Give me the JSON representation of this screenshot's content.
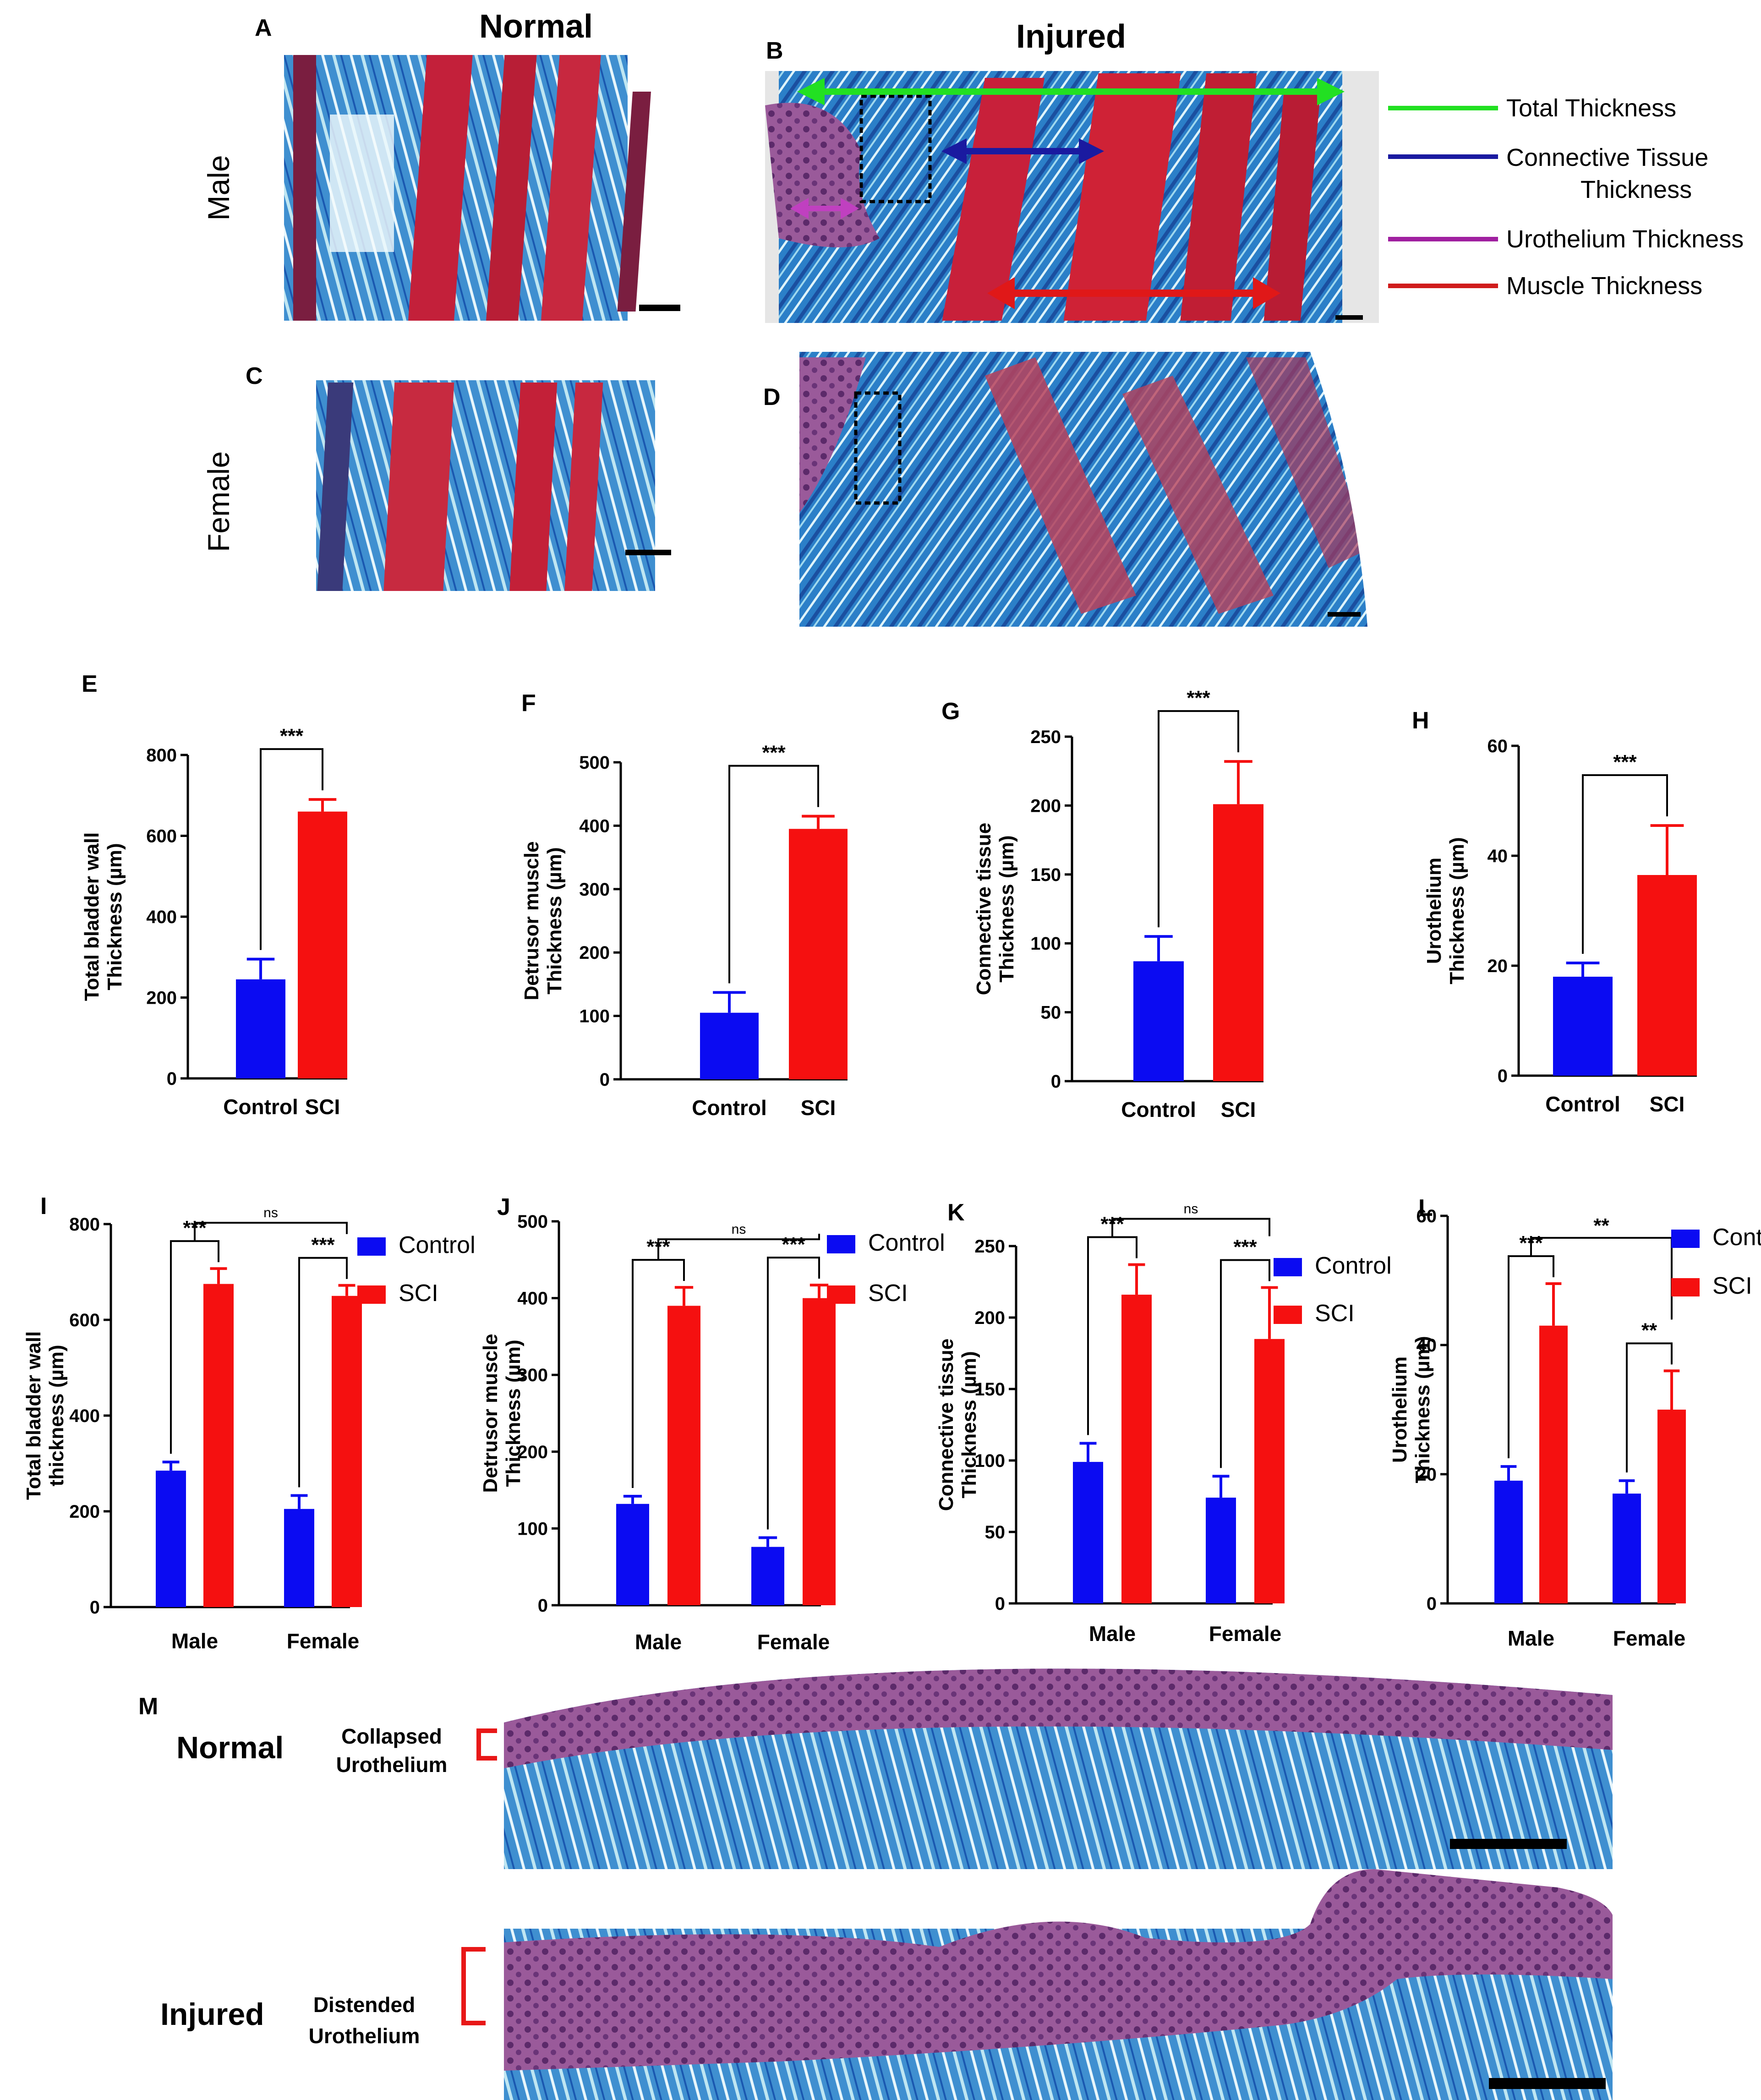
{
  "figure": {
    "panels": {
      "A": "A",
      "B": "B",
      "C": "C",
      "D": "D",
      "E": "E",
      "F": "F",
      "G": "G",
      "H": "H",
      "I": "I",
      "J": "J",
      "K": "K",
      "L": "L",
      "M": "M"
    },
    "column_titles": {
      "normal": "Normal",
      "injured": "Injured"
    },
    "row_labels": {
      "male": "Male",
      "female": "Female"
    },
    "thickness_legend": [
      {
        "label": "Total Thickness",
        "color": "#22e022"
      },
      {
        "label": "Connective Tissue Thickness",
        "line1": "Connective Tissue",
        "line2": "Thickness",
        "color": "#1a1aa0"
      },
      {
        "label": "Urothelium Thickness",
        "color": "#a020a0"
      },
      {
        "label": "Muscle Thickness",
        "color": "#d01c1c"
      }
    ],
    "panel_m": {
      "normal_label": "Normal",
      "injured_label": "Injured",
      "normal_note_l1": "Collapsed",
      "normal_note_l2": "Urothelium",
      "injured_note_l1": "Distended",
      "injured_note_l2": "Urothelium"
    },
    "colors": {
      "control": "#0b0bf2",
      "sci": "#f51010",
      "histo_blue": "#2a8fd0",
      "histo_red": "#c0223c",
      "histo_purple": "#8a4a8e"
    }
  },
  "chart_data": [
    {
      "panel": "E",
      "type": "bar",
      "categories": [
        "Control",
        "SCI"
      ],
      "values": [
        245,
        660
      ],
      "errors": [
        50,
        30
      ],
      "ylabel_line1": "Total bladder wall",
      "ylabel_line2": "Thickness (µm)",
      "ylim": [
        0,
        800
      ],
      "yticks": [
        "0",
        "200",
        "400",
        "600",
        "800"
      ],
      "significance": "***"
    },
    {
      "panel": "F",
      "type": "bar",
      "categories": [
        "Control",
        "SCI"
      ],
      "values": [
        105,
        395
      ],
      "errors": [
        32,
        20
      ],
      "ylabel_line1": "Detrusor muscle",
      "ylabel_line2": "Thickness (µm)",
      "ylim": [
        0,
        500
      ],
      "yticks": [
        "0",
        "100",
        "200",
        "300",
        "400",
        "500"
      ],
      "significance": "***"
    },
    {
      "panel": "G",
      "type": "bar",
      "categories": [
        "Control",
        "SCI"
      ],
      "values": [
        87,
        201
      ],
      "errors": [
        18,
        31
      ],
      "ylabel_line1": "Connective tissue",
      "ylabel_line2": "Thickness (µm)",
      "ylim": [
        0,
        250
      ],
      "yticks": [
        "0",
        "50",
        "100",
        "150",
        "200",
        "250"
      ],
      "significance": "***"
    },
    {
      "panel": "H",
      "type": "bar",
      "categories": [
        "Control",
        "SCI"
      ],
      "values": [
        18,
        36.5
      ],
      "errors": [
        2.5,
        9
      ],
      "ylabel_line1": "Urothelium",
      "ylabel_line2": "Thickness (µm)",
      "ylim": [
        0,
        60
      ],
      "yticks": [
        "0",
        "20",
        "40",
        "60"
      ],
      "significance": "***"
    },
    {
      "panel": "I",
      "type": "grouped_bar",
      "categories": [
        "Male",
        "Female"
      ],
      "series": [
        {
          "name": "Control",
          "values": [
            285,
            205
          ],
          "errors": [
            18,
            28
          ]
        },
        {
          "name": "SCI",
          "values": [
            675,
            650
          ],
          "errors": [
            32,
            22
          ]
        }
      ],
      "ylabel_line1": "Total bladder wall",
      "ylabel_line2": "thickness (µm)",
      "ylim": [
        0,
        800
      ],
      "yticks": [
        "0",
        "200",
        "400",
        "600",
        "800"
      ],
      "sig_male": "***",
      "sig_female": "***",
      "sig_between": "ns"
    },
    {
      "panel": "J",
      "type": "grouped_bar",
      "categories": [
        "Male",
        "Female"
      ],
      "series": [
        {
          "name": "Control",
          "values": [
            132,
            76
          ],
          "errors": [
            10,
            12
          ]
        },
        {
          "name": "SCI",
          "values": [
            390,
            400
          ],
          "errors": [
            24,
            17
          ]
        }
      ],
      "ylabel_line1": "Detrusor muscle",
      "ylabel_line2": "Thickness (µm)",
      "ylim": [
        0,
        500
      ],
      "yticks": [
        "0",
        "100",
        "200",
        "300",
        "400",
        "500"
      ],
      "sig_male": "***",
      "sig_female": "***",
      "sig_between": "ns"
    },
    {
      "panel": "K",
      "type": "grouped_bar",
      "categories": [
        "Male",
        "Female"
      ],
      "series": [
        {
          "name": "Control",
          "values": [
            99,
            74
          ],
          "errors": [
            13,
            15
          ]
        },
        {
          "name": "SCI",
          "values": [
            216,
            185
          ],
          "errors": [
            21,
            36
          ]
        }
      ],
      "ylabel_line1": "Connective tissue",
      "ylabel_line2": "Thickness (µm)",
      "ylim": [
        0,
        250
      ],
      "yticks": [
        "0",
        "50",
        "100",
        "150",
        "200",
        "250"
      ],
      "sig_male": "***",
      "sig_female": "***",
      "sig_between": "ns"
    },
    {
      "panel": "L",
      "type": "grouped_bar",
      "categories": [
        "Male",
        "Female"
      ],
      "series": [
        {
          "name": "Control",
          "values": [
            19,
            17
          ],
          "errors": [
            2.2,
            2
          ]
        },
        {
          "name": "SCI",
          "values": [
            43,
            30
          ],
          "errors": [
            6.5,
            6
          ]
        }
      ],
      "ylabel_line1": "Urothelium",
      "ylabel_line2": "Thickness (µm)",
      "ylim": [
        0,
        60
      ],
      "yticks": [
        "0",
        "20",
        "40",
        "60"
      ],
      "sig_male": "***",
      "sig_female": "**",
      "sig_between": "**"
    }
  ]
}
